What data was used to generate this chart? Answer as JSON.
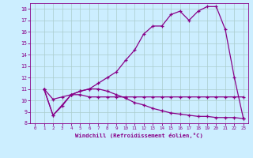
{
  "xlabel": "Windchill (Refroidissement éolien,°C)",
  "bg_color": "#cceeff",
  "grid_color": "#aacccc",
  "line_color": "#880088",
  "xlim": [
    -0.5,
    23.5
  ],
  "ylim": [
    8,
    18.5
  ],
  "xticks": [
    0,
    1,
    2,
    3,
    4,
    5,
    6,
    7,
    8,
    9,
    10,
    11,
    12,
    13,
    14,
    15,
    16,
    17,
    18,
    19,
    20,
    21,
    22,
    23
  ],
  "yticks": [
    8,
    9,
    10,
    11,
    12,
    13,
    14,
    15,
    16,
    17,
    18
  ],
  "line1_x": [
    1,
    2,
    3,
    4,
    5,
    6,
    7,
    8,
    9,
    10,
    11,
    12,
    13,
    14,
    15,
    16,
    17,
    18,
    19,
    20,
    21,
    22,
    23
  ],
  "line1_y": [
    11.0,
    10.1,
    10.3,
    10.5,
    10.5,
    10.3,
    10.3,
    10.3,
    10.3,
    10.3,
    10.3,
    10.3,
    10.3,
    10.3,
    10.3,
    10.3,
    10.3,
    10.3,
    10.3,
    10.3,
    10.3,
    10.3,
    10.3
  ],
  "line2_x": [
    1,
    2,
    3,
    4,
    5,
    6,
    7,
    8,
    9,
    10,
    11,
    12,
    13,
    14,
    15,
    16,
    17,
    18,
    19,
    20,
    21,
    22,
    23
  ],
  "line2_y": [
    11.0,
    8.7,
    9.5,
    10.5,
    10.8,
    11.0,
    11.5,
    12.0,
    12.5,
    13.5,
    14.4,
    15.8,
    16.5,
    16.5,
    17.5,
    17.8,
    17.0,
    17.8,
    18.2,
    18.2,
    16.2,
    12.0,
    8.4
  ],
  "line3_x": [
    1,
    2,
    4,
    5,
    6,
    7,
    8,
    9,
    10,
    11,
    12,
    13,
    14,
    15,
    16,
    17,
    18,
    19,
    20,
    21,
    22,
    23
  ],
  "line3_y": [
    11.0,
    8.7,
    10.5,
    10.8,
    11.0,
    11.0,
    10.8,
    10.5,
    10.2,
    9.8,
    9.6,
    9.3,
    9.1,
    8.9,
    8.8,
    8.7,
    8.6,
    8.6,
    8.5,
    8.5,
    8.5,
    8.4
  ]
}
